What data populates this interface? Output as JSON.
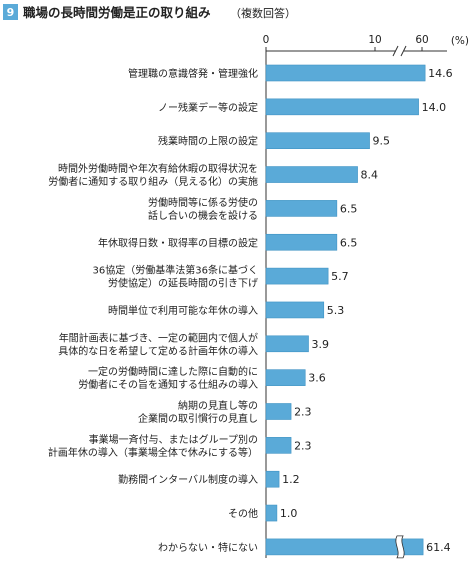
{
  "figure": {
    "number": "9",
    "title": "職場の長時間労働是正の取り組み",
    "subtitle": "（複数回答）",
    "unit": "(%)",
    "number_bg_color": "#5aaad8",
    "bar_color": "#5aaad8",
    "bar_border_color": "#3f93c4",
    "axis_color": "#333333"
  },
  "chart_data": {
    "type": "bar",
    "orientation": "horizontal",
    "title": "職場の長時間労働是正の取り組み",
    "subtitle": "（複数回答）",
    "unit": "%",
    "xlim": [
      0,
      60
    ],
    "axis_break": [
      30,
      55
    ],
    "ticks": [
      "0",
      "10",
      "20",
      "60"
    ],
    "grid": false,
    "categories": [
      [
        "管理職の意識啓発・管理強化"
      ],
      [
        "ノー残業デー等の設定"
      ],
      [
        "残業時間の上限の設定"
      ],
      [
        "時間外労働時間や年次有給休暇の取得状況を",
        "労働者に通知する取り組み（見える化）の実施"
      ],
      [
        "労働時間等に係る労使の",
        "話し合いの機会を設ける"
      ],
      [
        "年休取得日数・取得率の目標の設定"
      ],
      [
        "36協定（労働基準法第36条に基づく",
        "労使協定）の延長時間の引き下げ"
      ],
      [
        "時間単位で利用可能な年休の導入"
      ],
      [
        "年間計画表に基づき、一定の範囲内で個人が",
        "具体的な日を希望して定める計画年休の導入"
      ],
      [
        "一定の労働時間に達した際に自動的に",
        "労働者にその旨を通知する仕組みの導入"
      ],
      [
        "納期の見直し等の",
        "企業間の取引慣行の見直し"
      ],
      [
        "事業場一斉付与、またはグループ別の",
        "計画年休の導入（事業場全体で休みにする等）"
      ],
      [
        "勤務間インターバル制度の導入"
      ],
      [
        "その他"
      ],
      [
        "わからない・特にない"
      ]
    ],
    "values": [
      14.6,
      14.0,
      9.5,
      8.4,
      6.5,
      6.5,
      5.7,
      5.3,
      3.9,
      3.6,
      2.3,
      2.3,
      1.2,
      1.0,
      61.4
    ],
    "value_labels": [
      "14.6",
      "14.0",
      "9.5",
      "8.4",
      "6.5",
      "6.5",
      "5.7",
      "5.3",
      "3.9",
      "3.6",
      "2.3",
      "2.3",
      "1.2",
      "1.0",
      "61.4"
    ]
  }
}
